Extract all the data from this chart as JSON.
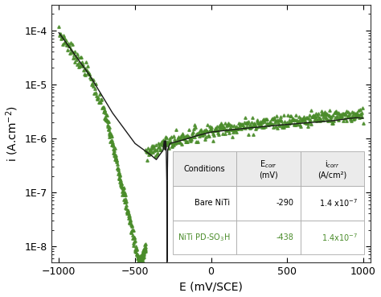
{
  "title": "",
  "xlabel": "E (mV/SCE)",
  "ylabel": "i (A.cm$^{-2}$)",
  "xlim": [
    -1050,
    1050
  ],
  "ylim": [
    5e-09,
    0.0003
  ],
  "xticks": [
    -1000,
    -500,
    0,
    500,
    1000
  ],
  "ytick_labels": [
    "1E-8",
    "1E-7",
    "1E-6",
    "1E-5",
    "1E-4"
  ],
  "ytick_values": [
    1e-08,
    1e-07,
    1e-06,
    1e-05,
    0.0001
  ],
  "bare_niti_color": "#1a1a1a",
  "pd_so3h_color": "#4a8c2a",
  "background_color": "#ffffff",
  "table_header_bg": "#e8e8e8",
  "table_bg": "#ffffff"
}
